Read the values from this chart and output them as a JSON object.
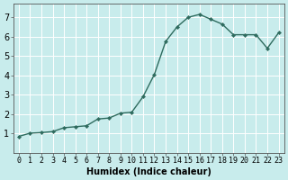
{
  "x": [
    0,
    1,
    2,
    3,
    4,
    5,
    6,
    7,
    8,
    9,
    10,
    11,
    12,
    13,
    14,
    15,
    16,
    17,
    18,
    19,
    20,
    21,
    22,
    23
  ],
  "y": [
    0.85,
    1.02,
    1.05,
    1.1,
    1.3,
    1.35,
    1.4,
    1.75,
    1.8,
    2.05,
    2.1,
    2.9,
    4.05,
    5.75,
    6.5,
    7.0,
    7.15,
    6.9,
    6.65,
    6.1,
    6.1,
    6.1,
    5.4,
    6.2
  ],
  "line_color": "#2e6b5e",
  "marker": "D",
  "marker_size": 2.2,
  "linewidth": 1.0,
  "background_color": "#c8ecec",
  "grid_color": "#e8f8f8",
  "xlabel": "Humidex (Indice chaleur)",
  "xlabel_fontsize": 7,
  "tick_fontsize": 6,
  "xlim": [
    -0.5,
    23.5
  ],
  "ylim": [
    0,
    7.7
  ],
  "yticks": [
    1,
    2,
    3,
    4,
    5,
    6,
    7
  ],
  "xticks": [
    0,
    1,
    2,
    3,
    4,
    5,
    6,
    7,
    8,
    9,
    10,
    11,
    12,
    13,
    14,
    15,
    16,
    17,
    18,
    19,
    20,
    21,
    22,
    23
  ]
}
